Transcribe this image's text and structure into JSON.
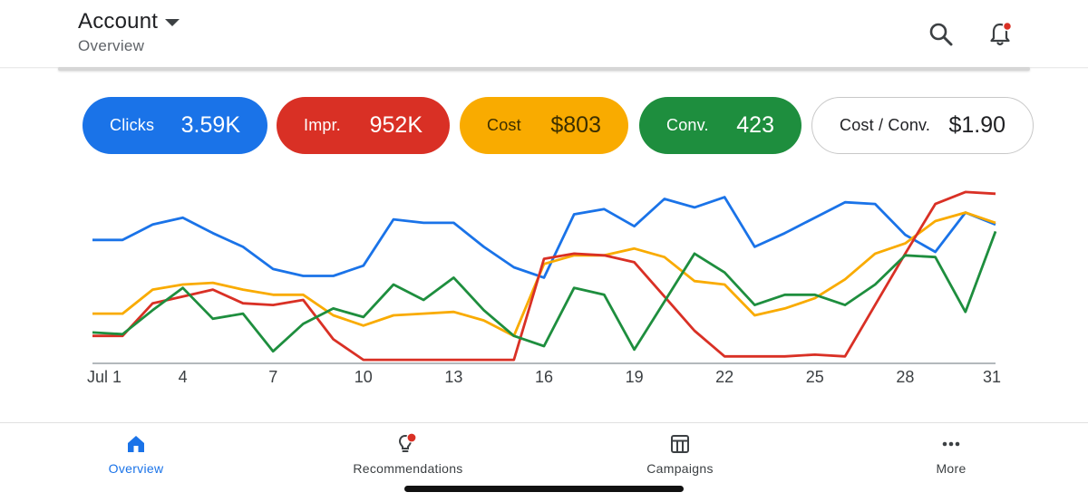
{
  "header": {
    "title": "Account",
    "subtitle": "Overview",
    "search_icon": "search-icon",
    "notification_icon": "bell-icon"
  },
  "metrics": [
    {
      "label": "Clicks",
      "value": "3.59K",
      "color": "#1a73e8"
    },
    {
      "label": "Impr.",
      "value": "952K",
      "color": "#d93025"
    },
    {
      "label": "Cost",
      "value": "$803",
      "color": "#f9ab00"
    },
    {
      "label": "Conv.",
      "value": "423",
      "color": "#1e8e3e"
    },
    {
      "label": "Cost / Conv.",
      "value": "$1.90",
      "color": "#ffffff"
    }
  ],
  "chart_data": {
    "type": "line",
    "x": [
      1,
      2,
      3,
      4,
      5,
      6,
      7,
      8,
      9,
      10,
      11,
      12,
      13,
      14,
      15,
      16,
      17,
      18,
      19,
      20,
      21,
      22,
      23,
      24,
      25,
      26,
      27,
      28,
      29,
      30,
      31
    ],
    "tick_labels": [
      "Jul 1",
      "4",
      "7",
      "10",
      "13",
      "16",
      "19",
      "22",
      "25",
      "28",
      "31"
    ],
    "tick_positions": [
      1,
      4,
      7,
      10,
      13,
      16,
      19,
      22,
      25,
      28,
      31
    ],
    "ylim": [
      0,
      100
    ],
    "grid": false,
    "series": [
      {
        "color": "#1a73e8",
        "values": [
          71,
          71,
          80,
          84,
          75,
          67,
          54,
          50,
          50,
          56,
          83,
          81,
          81,
          67,
          55,
          49,
          86,
          89,
          79,
          95,
          90,
          96,
          67,
          75,
          84,
          93,
          92,
          74,
          64,
          87,
          80
        ]
      },
      {
        "color": "#f9ab00",
        "values": [
          28,
          28,
          42,
          45,
          46,
          42,
          39,
          39,
          27,
          21,
          27,
          28,
          29,
          24,
          15,
          57,
          62,
          62,
          66,
          61,
          47,
          45,
          27,
          31,
          37,
          48,
          63,
          69,
          82,
          87,
          81
        ]
      },
      {
        "color": "#d93025",
        "values": [
          15,
          15,
          34,
          38,
          42,
          34,
          33,
          36,
          13,
          1,
          1,
          1,
          1,
          1,
          1,
          60,
          63,
          62,
          58,
          38,
          18,
          3,
          3,
          3,
          4,
          3,
          33,
          63,
          92,
          99,
          98
        ]
      },
      {
        "color": "#1e8e3e",
        "values": [
          17,
          16,
          30,
          43,
          25,
          28,
          6,
          22,
          31,
          26,
          45,
          36,
          49,
          30,
          15,
          9,
          43,
          39,
          7,
          35,
          63,
          52,
          33,
          39,
          39,
          33,
          45,
          62,
          61,
          29,
          76
        ]
      }
    ]
  },
  "bottom_nav": [
    {
      "label": "Overview",
      "icon": "home-icon",
      "active": true
    },
    {
      "label": "Recommendations",
      "icon": "lightbulb-icon",
      "active": false
    },
    {
      "label": "Campaigns",
      "icon": "table-icon",
      "active": false
    },
    {
      "label": "More",
      "icon": "more-dots-icon",
      "active": false
    }
  ]
}
